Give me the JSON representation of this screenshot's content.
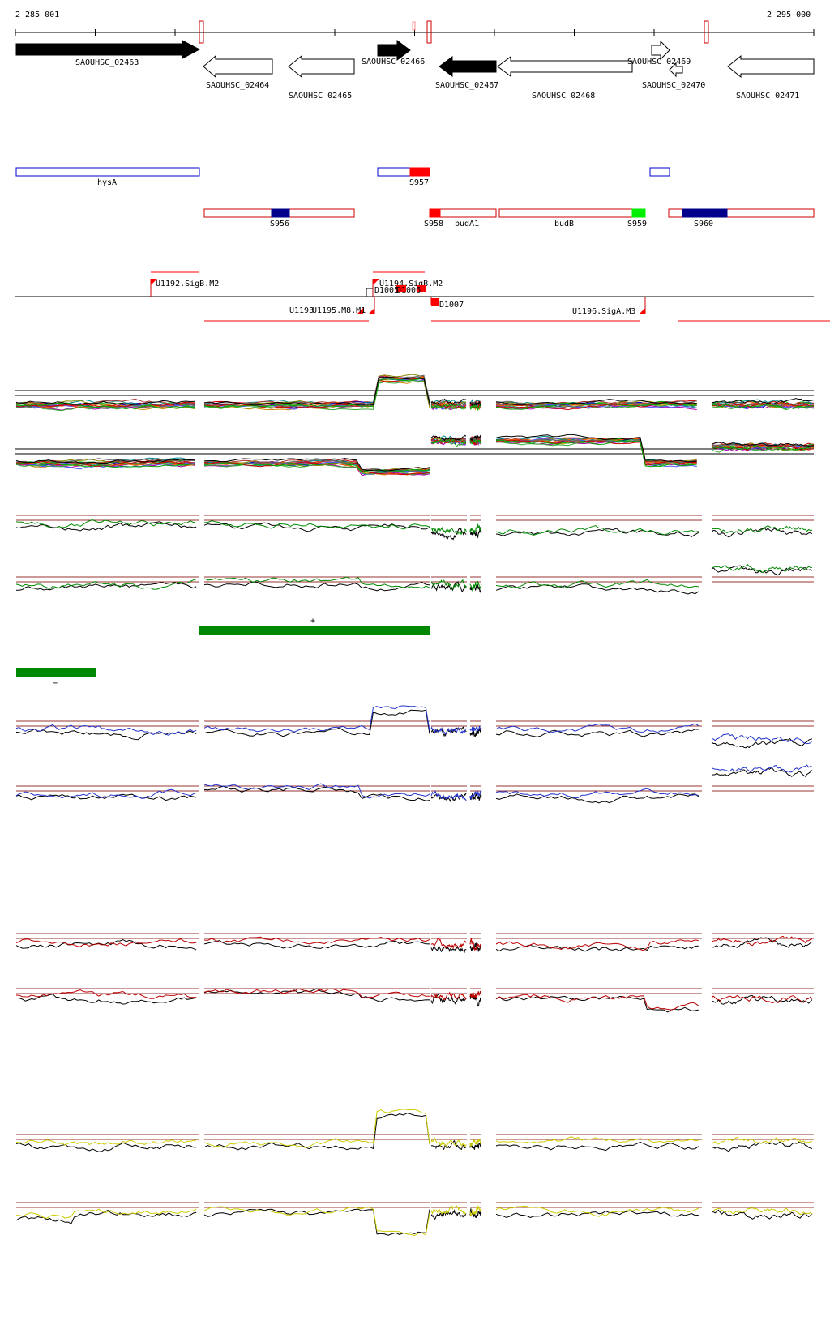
{
  "ruler": {
    "start_label": "2 285 001",
    "end_label": "2 295 000"
  },
  "genes": [
    {
      "id": "SAOUHSC_02463",
      "strand": "+",
      "filled": true
    },
    {
      "id": "SAOUHSC_02464",
      "strand": "-",
      "filled": false
    },
    {
      "id": "SAOUHSC_02465",
      "strand": "-",
      "filled": false
    },
    {
      "id": "SAOUHSC_02466",
      "strand": "+",
      "filled": true
    },
    {
      "id": "SAOUHSC_02467",
      "strand": "-",
      "filled": true
    },
    {
      "id": "SAOUHSC_02468",
      "strand": "-",
      "filled": false
    },
    {
      "id": "SAOUHSC_02469",
      "strand": "+",
      "filled": false
    },
    {
      "id": "SAOUHSC_02470",
      "strand": "-",
      "filled": false
    },
    {
      "id": "SAOUHSC_02471",
      "strand": "-",
      "filled": false
    }
  ],
  "features_plus": [
    {
      "label": "hysA",
      "color": "#0000cc"
    },
    {
      "label": "S957",
      "color": "#ff0000"
    }
  ],
  "features_minus": [
    {
      "label": "S956",
      "color": "#00008b"
    },
    {
      "label": "S958",
      "color": "#ff0000"
    },
    {
      "label": "budA1",
      "color": "#cc0000"
    },
    {
      "label": "budB",
      "color": "#cc0000"
    },
    {
      "label": "S959",
      "color": "#00ee00"
    },
    {
      "label": "S960",
      "color": "#00008b"
    }
  ],
  "promoters_plus": [
    "U1192.SigB.M2",
    "U1194.SigB.M2",
    "D1005",
    "D1006"
  ],
  "promoters_minus": [
    "U1193",
    "U1195.M8.M1",
    "D1007",
    "U1196.SigA.M3"
  ],
  "track_signs": {
    "plus": "+",
    "minus": "−"
  },
  "colors": {
    "strand_line": "#000000",
    "feature_outline": "#cc0000",
    "profile_green": "#008800",
    "profile_blue": "#2233cc",
    "profile_red": "#bb0000",
    "profile_yellow": "#cccc00",
    "threshold_line": "#993333",
    "segment_bar": "#008800"
  }
}
